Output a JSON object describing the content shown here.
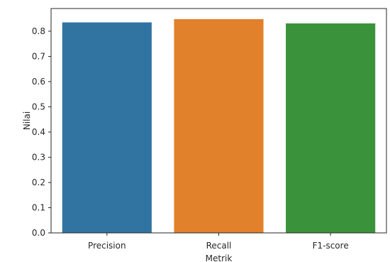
{
  "chart_data": {
    "type": "bar",
    "categories": [
      "Precision",
      "Recall",
      "F1-score"
    ],
    "values": [
      0.835,
      0.848,
      0.831
    ],
    "colors": [
      "#3274a1",
      "#e1812c",
      "#3a923a"
    ],
    "title": "",
    "xlabel": "Metrik",
    "ylabel": "Nilai",
    "ylim": [
      0,
      0.89
    ],
    "yticks": [
      "0.0",
      "0.1",
      "0.2",
      "0.3",
      "0.4",
      "0.5",
      "0.6",
      "0.7",
      "0.8"
    ],
    "grid": false,
    "legend": "none"
  }
}
